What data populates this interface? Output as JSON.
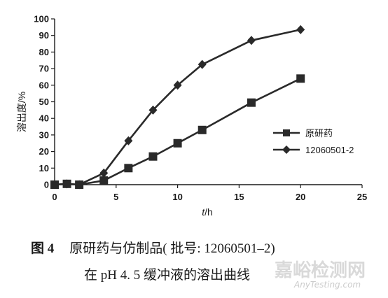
{
  "chart_data": {
    "type": "line",
    "xlabel_italic": "t",
    "xlabel_unit": "/h",
    "ylabel": "溶出度/%",
    "xlim": [
      0,
      25
    ],
    "ylim": [
      0,
      100
    ],
    "xticks": [
      0,
      5,
      10,
      15,
      20,
      25
    ],
    "yticks": [
      0,
      10,
      20,
      30,
      40,
      50,
      60,
      70,
      80,
      90,
      100
    ],
    "grid": false,
    "legend_position": "right",
    "series": [
      {
        "name": "原研药",
        "marker": "square",
        "x": [
          0,
          1,
          2,
          4,
          6,
          8,
          10,
          12,
          16,
          20
        ],
        "y": [
          0,
          0.5,
          0,
          2.5,
          10,
          17,
          25,
          33,
          49.5,
          64
        ]
      },
      {
        "name": "12060501-2",
        "marker": "diamond",
        "x": [
          0,
          1,
          2,
          4,
          6,
          8,
          10,
          12,
          16,
          20
        ],
        "y": [
          0,
          0.5,
          0,
          7,
          26.5,
          45,
          60,
          72.5,
          87,
          93.5
        ]
      }
    ]
  },
  "caption": {
    "label": "图 4",
    "line1": "原研药与仿制品( 批号: 12060501–2)",
    "line2": "在 pH 4. 5 缓冲液的溶出曲线"
  },
  "watermark": {
    "cn": "嘉峪检测网",
    "en": "AnyTesting.com"
  }
}
